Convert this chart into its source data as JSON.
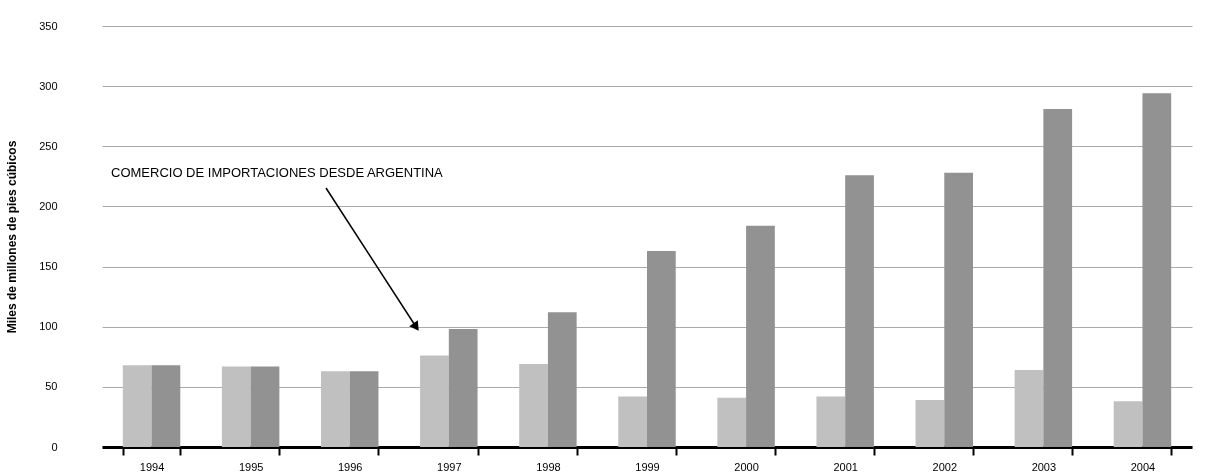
{
  "chart_data": {
    "type": "bar",
    "ylabel": "Miles de millones de pies cúbicos",
    "categories": [
      "1994",
      "1995",
      "1996",
      "1997",
      "1998",
      "1999",
      "2000",
      "2001",
      "2002",
      "2003",
      "2004"
    ],
    "series": [
      {
        "color": "#c0c0c0",
        "values": [
          68,
          67,
          63,
          76,
          69,
          42,
          41,
          42,
          39,
          64,
          38
        ]
      },
      {
        "color": "#929292",
        "values": [
          68,
          67,
          63,
          98,
          112,
          163,
          184,
          226,
          228,
          281,
          294
        ]
      }
    ],
    "ylim": [
      0,
      350
    ],
    "yticks": [
      0,
      50,
      100,
      150,
      200,
      250,
      300,
      350
    ],
    "grid": "y",
    "legend": false,
    "annotations": [
      "COMERCIO DE IMPORTACIONES DESDE  ARGENTINA"
    ]
  }
}
